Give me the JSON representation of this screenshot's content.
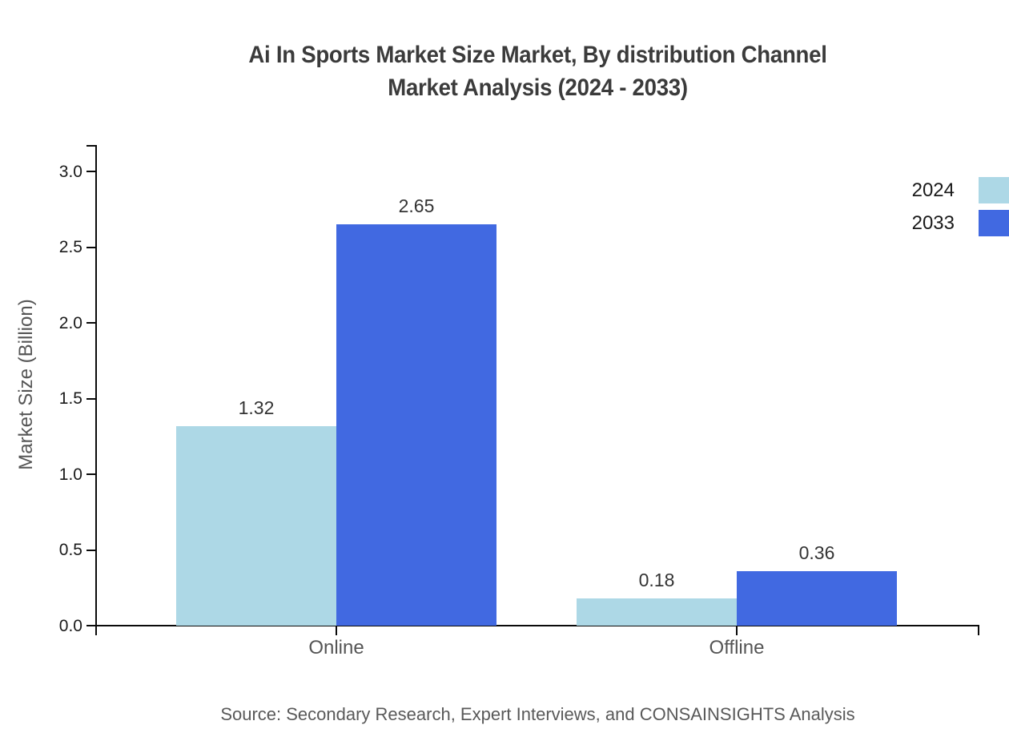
{
  "title": {
    "line1": "Ai In Sports Market Size Market, By distribution Channel",
    "line2": "Market Analysis (2024 - 2033)"
  },
  "source": "Source: Secondary Research, Expert Interviews, and CONSAINSIGHTS Analysis",
  "chart_data": {
    "type": "bar",
    "categories": [
      "Online",
      "Offline"
    ],
    "series": [
      {
        "name": "2024",
        "color": "#ADD8E6",
        "values": [
          1.32,
          0.18
        ]
      },
      {
        "name": "2033",
        "color": "#4169E1",
        "values": [
          2.65,
          0.36
        ]
      }
    ],
    "value_labels": [
      "1.32",
      "2.65",
      "0.18",
      "0.36"
    ],
    "title": "Ai In Sports Market Size Market, By distribution Channel Market Analysis (2024 - 2033)",
    "xlabel": "",
    "ylabel": "Market Size (Billion)",
    "ylim": [
      0.0,
      3.0
    ],
    "yticks": [
      0.0,
      0.5,
      1.0,
      1.5,
      2.0,
      2.5,
      3.0
    ],
    "grid": false,
    "legend_position": "right-top"
  }
}
